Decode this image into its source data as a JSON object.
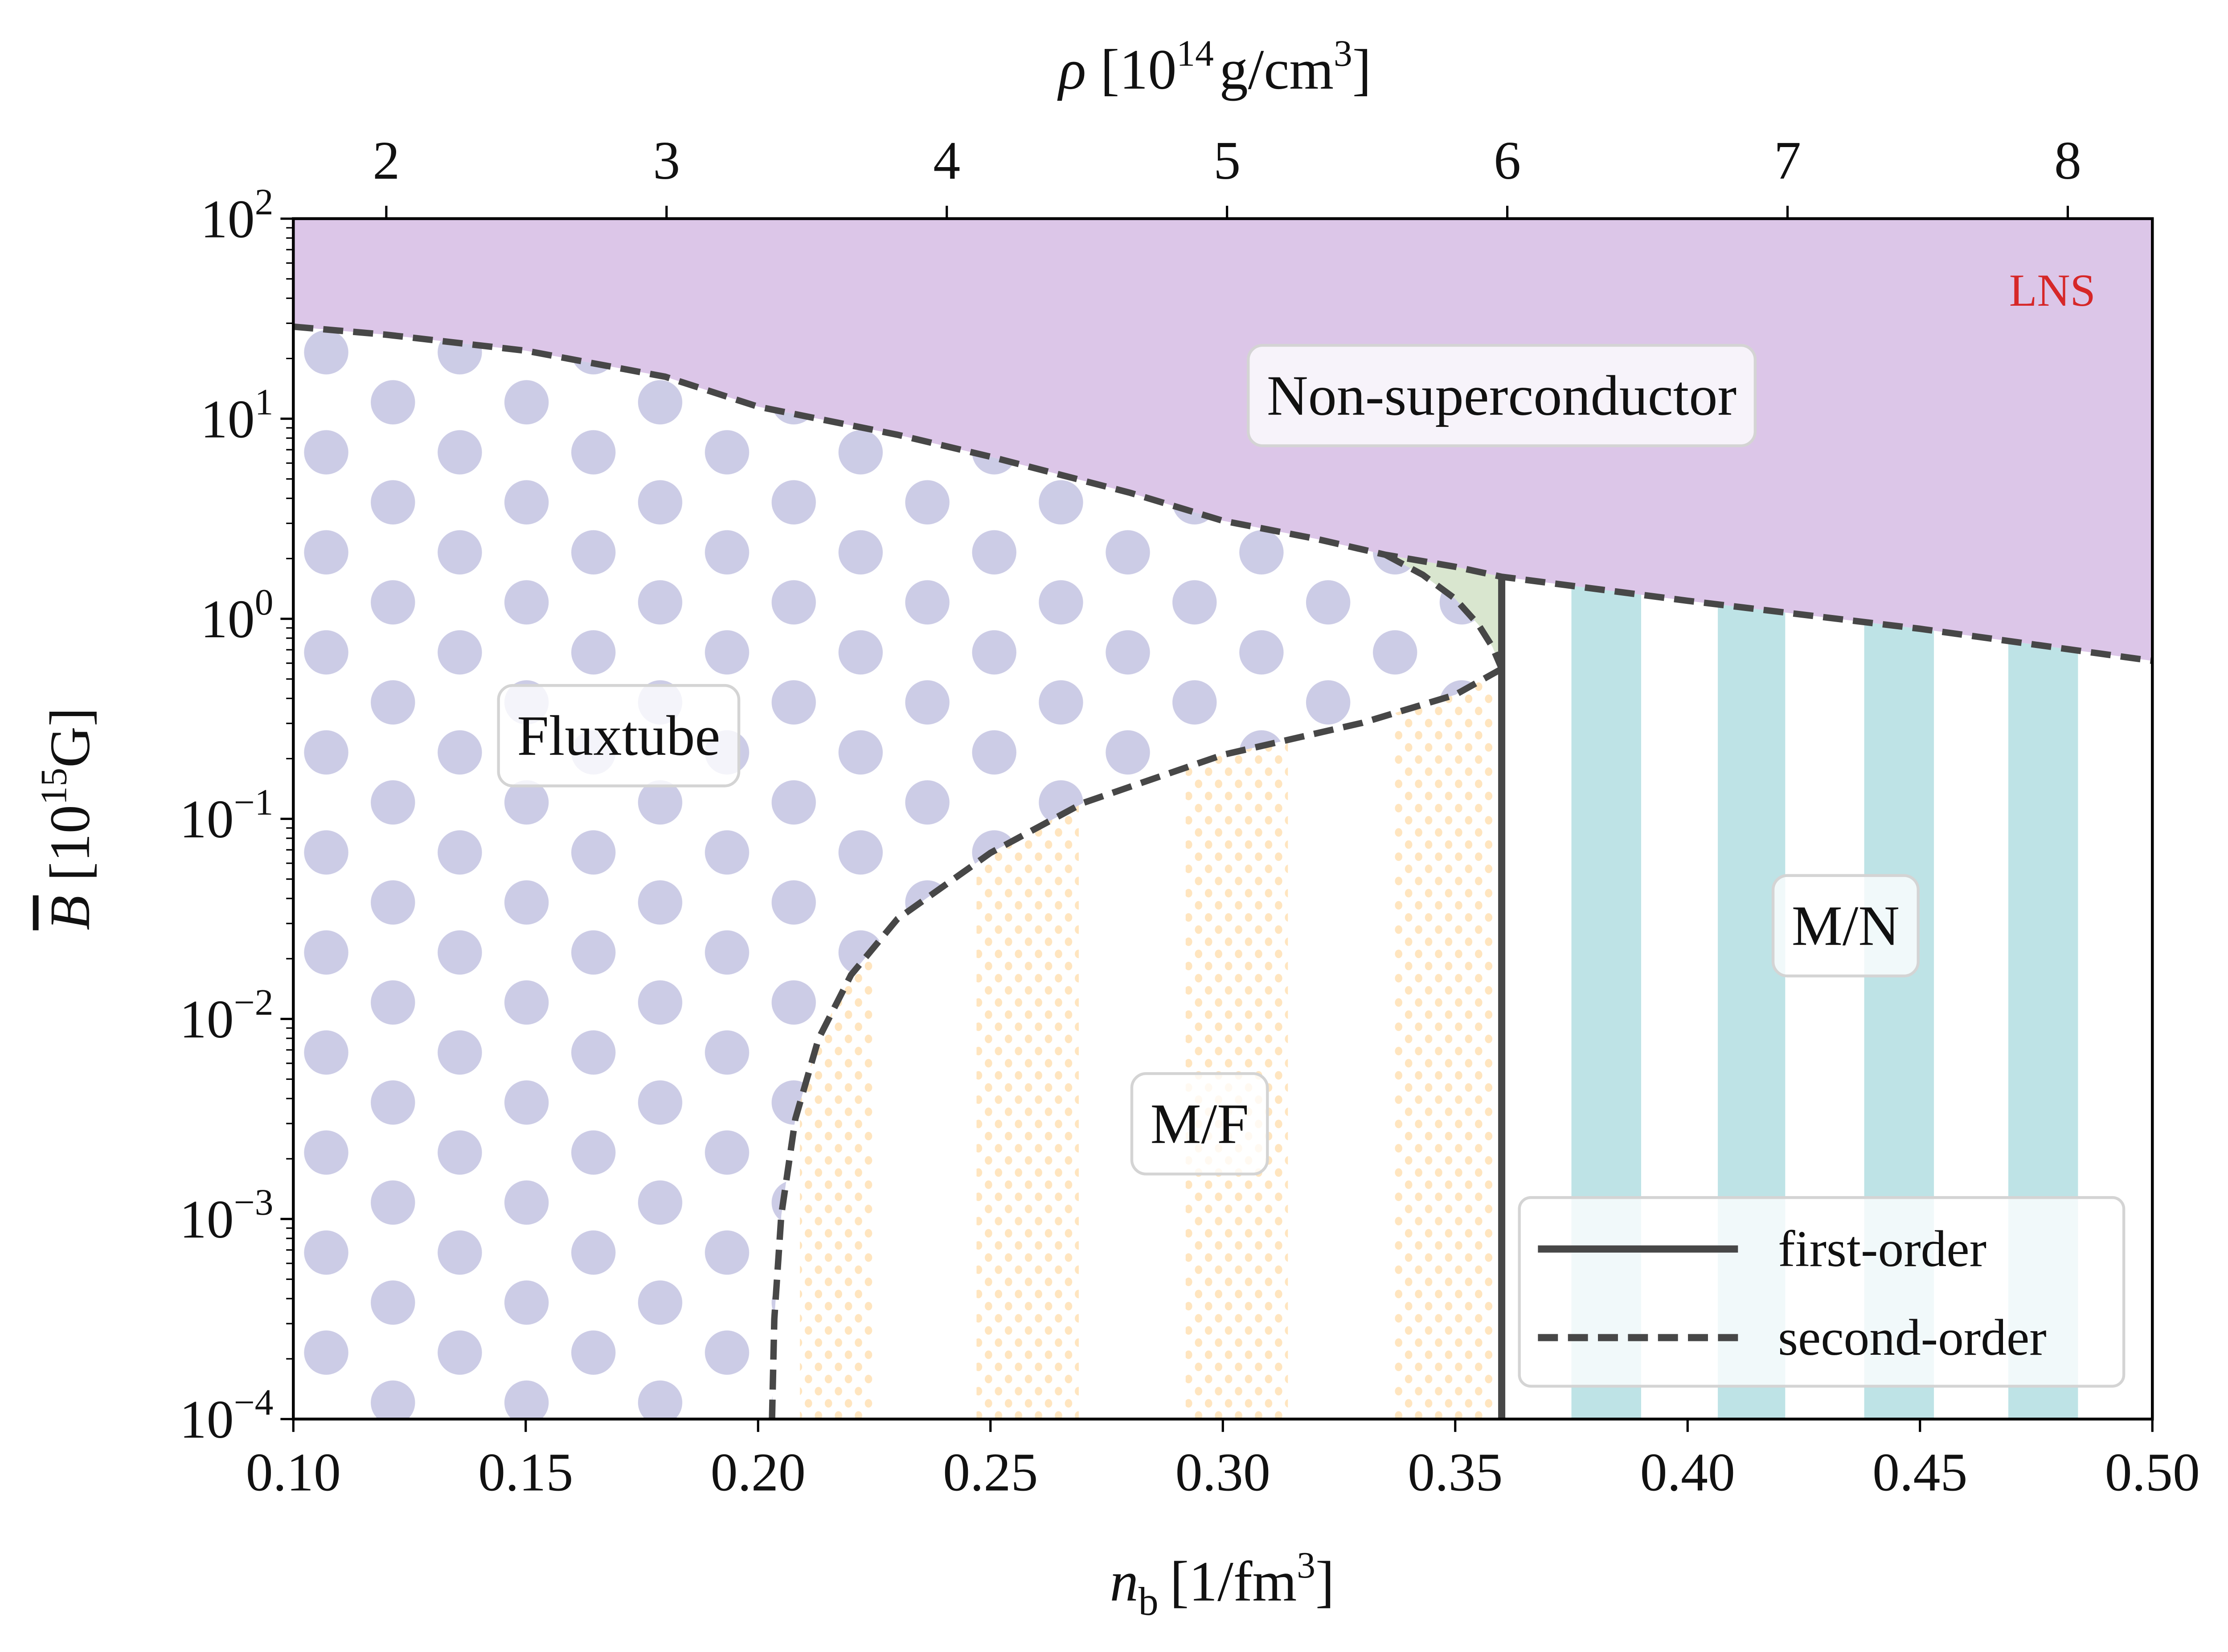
{
  "chart_data": {
    "type": "area",
    "title": "",
    "xlabel": {
      "var": "n",
      "sub": "b",
      "unit": "[1/fm",
      "unit_exp": "3",
      "unit_close": "]"
    },
    "ylabel": {
      "var": "B",
      "unit": "[10",
      "unit_exp": "15",
      "unit_close": "G]"
    },
    "top_xlabel": {
      "var": "ρ",
      "unit": "[10",
      "unit_exp": "14",
      "unit_mid": "g/cm",
      "unit_exp2": "3",
      "unit_close": "]"
    },
    "xlim": [
      0.1,
      0.5
    ],
    "ylim_log10": [
      -4,
      2
    ],
    "yscale": "log",
    "x_ticks": [
      "0.10",
      "0.15",
      "0.20",
      "0.25",
      "0.30",
      "0.35",
      "0.40",
      "0.45",
      "0.50"
    ],
    "y_ticks": [
      {
        "base": "10",
        "exp": "−4",
        "v": -4
      },
      {
        "base": "10",
        "exp": "−3",
        "v": -3
      },
      {
        "base": "10",
        "exp": "−2",
        "v": -2
      },
      {
        "base": "10",
        "exp": "−1",
        "v": -1
      },
      {
        "base": "10",
        "exp": "0",
        "v": 0
      },
      {
        "base": "10",
        "exp": "1",
        "v": 1
      },
      {
        "base": "10",
        "exp": "2",
        "v": 2
      }
    ],
    "top_ticks": [
      {
        "label": "2",
        "v": 2
      },
      {
        "label": "3",
        "v": 3
      },
      {
        "label": "4",
        "v": 4
      },
      {
        "label": "5",
        "v": 5
      },
      {
        "label": "6",
        "v": 6
      },
      {
        "label": "7",
        "v": 7
      },
      {
        "label": "8",
        "v": 8
      }
    ],
    "rho_at_nb": {
      "nb0": 0.12,
      "rho0": 2,
      "nb_per_unit": 0.0603
    },
    "boundaries": {
      "upper": {
        "nb": [
          0.1,
          0.12,
          0.15,
          0.18,
          0.2,
          0.23,
          0.25,
          0.28,
          0.3,
          0.32,
          0.335,
          0.35,
          0.36,
          0.4,
          0.45,
          0.5
        ],
        "log10B": [
          1.46,
          1.42,
          1.34,
          1.21,
          1.06,
          0.92,
          0.81,
          0.63,
          0.49,
          0.4,
          0.32,
          0.26,
          0.21,
          0.09,
          -0.05,
          -0.21
        ],
        "type": "second-order"
      },
      "fluxtube_inner": {
        "nb": [
          0.335,
          0.343,
          0.35,
          0.355,
          0.358,
          0.36
        ],
        "log10B": [
          0.32,
          0.22,
          0.1,
          -0.03,
          -0.14,
          -0.25
        ],
        "type": "second-order"
      },
      "lower": {
        "nb": [
          0.36,
          0.35,
          0.33,
          0.3,
          0.27,
          0.25,
          0.23,
          0.22,
          0.213,
          0.208,
          0.205,
          0.2035,
          0.203
        ],
        "log10B": [
          -0.25,
          -0.38,
          -0.52,
          -0.68,
          -0.92,
          -1.17,
          -1.5,
          -1.78,
          -2.1,
          -2.5,
          -2.98,
          -3.5,
          -4
        ],
        "type": "second-order"
      },
      "vertical": {
        "nb": 0.36,
        "log10B": [
          -4,
          0.21
        ],
        "type": "first-order"
      }
    },
    "mf_stripes": [
      [
        0.209,
        0.225
      ],
      [
        0.247,
        0.269
      ],
      [
        0.292,
        0.314
      ],
      [
        0.337,
        0.358
      ]
    ],
    "mn_stripes": [
      [
        0.375,
        0.39
      ],
      [
        0.4065,
        0.421
      ],
      [
        0.438,
        0.453
      ],
      [
        0.469,
        0.484
      ]
    ],
    "regions": [
      {
        "label": "Non-superconductor",
        "nb": 0.36,
        "log10B": 1.12
      },
      {
        "label": "Fluxtube",
        "nb": 0.17,
        "log10B": -0.58
      },
      {
        "label": "M/F",
        "nb": 0.295,
        "log10B": -2.52
      },
      {
        "label": "M/N",
        "nb": 0.434,
        "log10B": -1.53
      }
    ],
    "annotation": {
      "label": "LNS",
      "color": "#d62728"
    },
    "legend": {
      "position": "lower-right",
      "entries": [
        {
          "label": "first-order",
          "style": "solid"
        },
        {
          "label": "second-order",
          "style": "dashed"
        }
      ]
    },
    "colors": {
      "non_sc": "#dcc6e8",
      "fluxtube_dot": "#cccce6",
      "mf_dot": "#ffe5bf",
      "mn_stripe": "#bee3e6",
      "mixed": "#d9e6cf",
      "line": "#474747"
    }
  }
}
